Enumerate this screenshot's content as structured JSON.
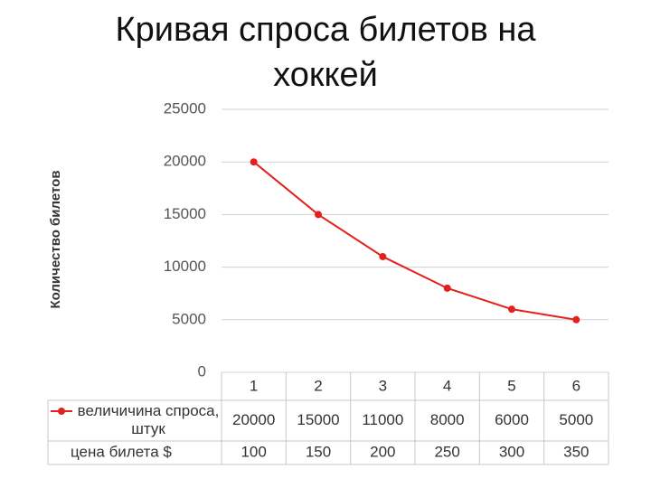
{
  "chart_data": {
    "type": "line",
    "title": "Кривая спроса билетов на хоккей",
    "y_label": "Количество билетов",
    "categories": [
      "1",
      "2",
      "3",
      "4",
      "5",
      "6"
    ],
    "series": [
      {
        "name": "величичина спроса, штук",
        "color": "#e3211c",
        "values": [
          20000,
          15000,
          11000,
          8000,
          6000,
          5000
        ]
      }
    ],
    "table_rows": [
      {
        "name": "цена билета $",
        "values": [
          100,
          150,
          200,
          250,
          300,
          350
        ]
      }
    ],
    "ylim": [
      0,
      25000
    ],
    "yticks": [
      0,
      5000,
      10000,
      15000,
      20000,
      25000
    ],
    "grid": true
  }
}
